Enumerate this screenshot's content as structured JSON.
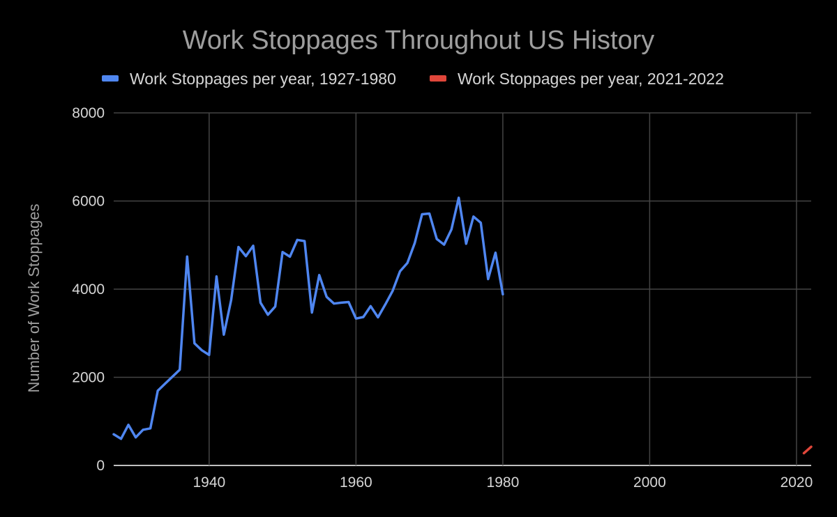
{
  "chart_data": {
    "type": "line",
    "title": "Work Stoppages Throughout US History",
    "xlabel": "",
    "ylabel": "Number of Work Stoppages",
    "xlim": [
      1927,
      2022
    ],
    "ylim": [
      0,
      8000
    ],
    "x_ticks": [
      1940,
      1960,
      1980,
      2000,
      2020
    ],
    "y_ticks": [
      0,
      2000,
      4000,
      6000,
      8000
    ],
    "grid": true,
    "legend_position": "top",
    "series": [
      {
        "name": "Work Stoppages per year, 1927-1980",
        "color": "#4f86f0",
        "x": [
          1927,
          1928,
          1929,
          1930,
          1931,
          1932,
          1933,
          1934,
          1935,
          1936,
          1937,
          1938,
          1939,
          1940,
          1941,
          1942,
          1943,
          1944,
          1945,
          1946,
          1947,
          1948,
          1949,
          1950,
          1951,
          1952,
          1953,
          1954,
          1955,
          1956,
          1957,
          1958,
          1959,
          1960,
          1961,
          1962,
          1963,
          1964,
          1965,
          1966,
          1967,
          1968,
          1969,
          1970,
          1971,
          1972,
          1973,
          1974,
          1975,
          1976,
          1977,
          1978,
          1979,
          1980
        ],
        "y": [
          707,
          604,
          921,
          637,
          810,
          841,
          1695,
          1856,
          2014,
          2172,
          4740,
          2772,
          2613,
          2508,
          4288,
          2968,
          3752,
          4956,
          4750,
          4985,
          3693,
          3419,
          3606,
          4843,
          4737,
          5117,
          5091,
          3468,
          4320,
          3825,
          3673,
          3694,
          3708,
          3333,
          3367,
          3614,
          3362,
          3655,
          3963,
          4405,
          4595,
          5045,
          5700,
          5716,
          5138,
          5010,
          5353,
          6074,
          5031,
          5648,
          5506,
          4230,
          4827,
          3885
        ]
      },
      {
        "name": "Work Stoppages per year, 2021-2022",
        "color": "#e0463a",
        "x": [
          2021,
          2022
        ],
        "y": [
          279,
          424
        ]
      }
    ]
  }
}
